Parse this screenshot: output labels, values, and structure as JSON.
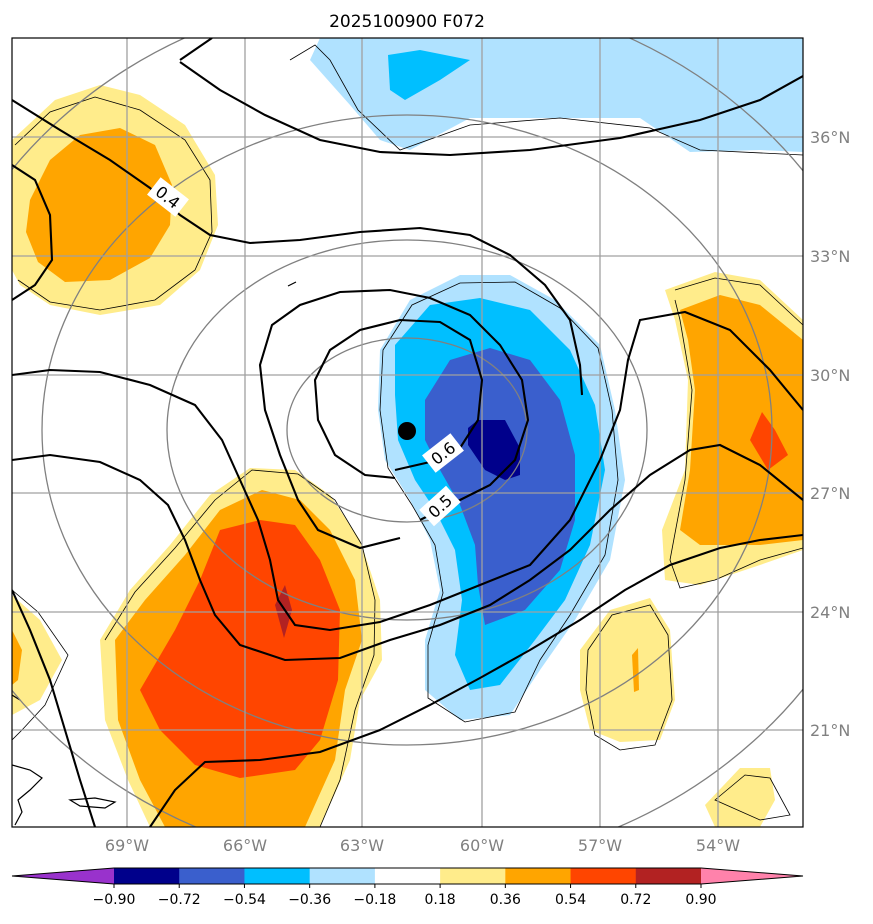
{
  "title": "2025100900 F072",
  "lat_ticks": [
    "36°N",
    "33°N",
    "30°N",
    "27°N",
    "24°N",
    "21°N"
  ],
  "lon_ticks": [
    "69°W",
    "66°W",
    "63°W",
    "60°W",
    "57°W",
    "54°W"
  ],
  "colorbar": {
    "ticks": [
      "−0.90",
      "−0.72",
      "−0.54",
      "−0.36",
      "−0.18",
      "0.18",
      "0.36",
      "0.54",
      "0.72",
      "0.90"
    ],
    "colors": [
      "#9932cc",
      "#00008b",
      "#3a5fcd",
      "#00bfff",
      "#b0e2ff",
      "#ffffff",
      "#ffec8b",
      "#ffa500",
      "#ff4500",
      "#b22222",
      "#ff82ab"
    ]
  },
  "contour_labels": [
    "0.4",
    "0.6",
    "0.5"
  ],
  "storm_marker": "storm-center",
  "colors": {
    "lightblue": "#b0e2ff",
    "skyblue": "#00bfff",
    "royalblue": "#3a5fcd",
    "navy": "#00008b",
    "lightyellow": "#ffec8b",
    "orange": "#ffa500",
    "orangered": "#ff4500",
    "firebrick": "#b22222",
    "grid": "#a0a0a0"
  }
}
